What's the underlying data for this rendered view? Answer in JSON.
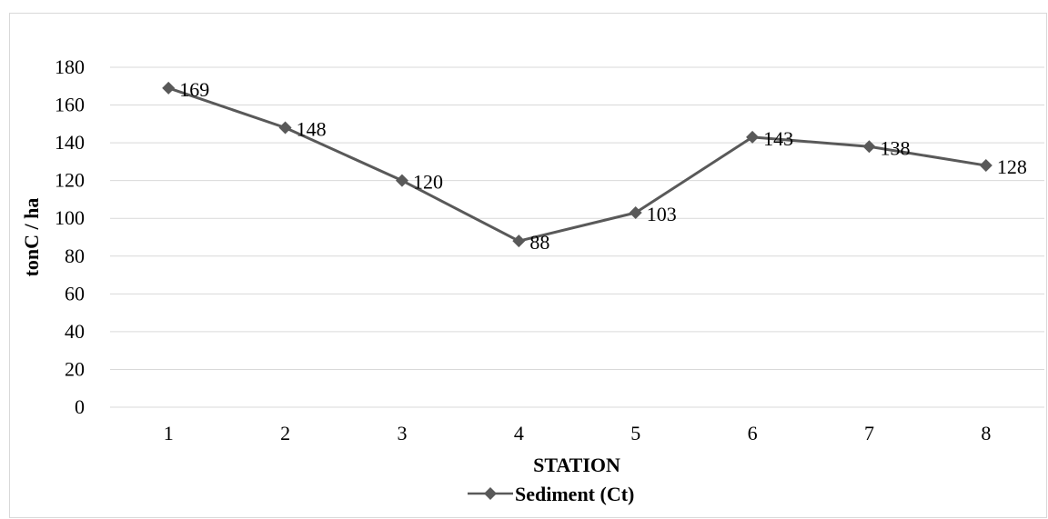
{
  "chart_data": {
    "type": "line",
    "categories": [
      "1",
      "2",
      "3",
      "4",
      "5",
      "6",
      "7",
      "8"
    ],
    "series": [
      {
        "name": "Sediment (Ct)",
        "values": [
          169,
          148,
          120,
          88,
          103,
          143,
          138,
          128
        ],
        "color": "#595959"
      }
    ],
    "data_labels": [
      "169",
      "148",
      "120",
      "88",
      "103",
      "143",
      "138",
      "128"
    ],
    "xlabel": "STATION",
    "ylabel": "tonC / ha",
    "ylim": [
      0,
      180
    ],
    "yticks": [
      "0",
      "20",
      "40",
      "60",
      "80",
      "100",
      "120",
      "140",
      "160",
      "180"
    ],
    "grid": true,
    "legend": "bottom",
    "gridline_color": "#d9d9d9"
  }
}
